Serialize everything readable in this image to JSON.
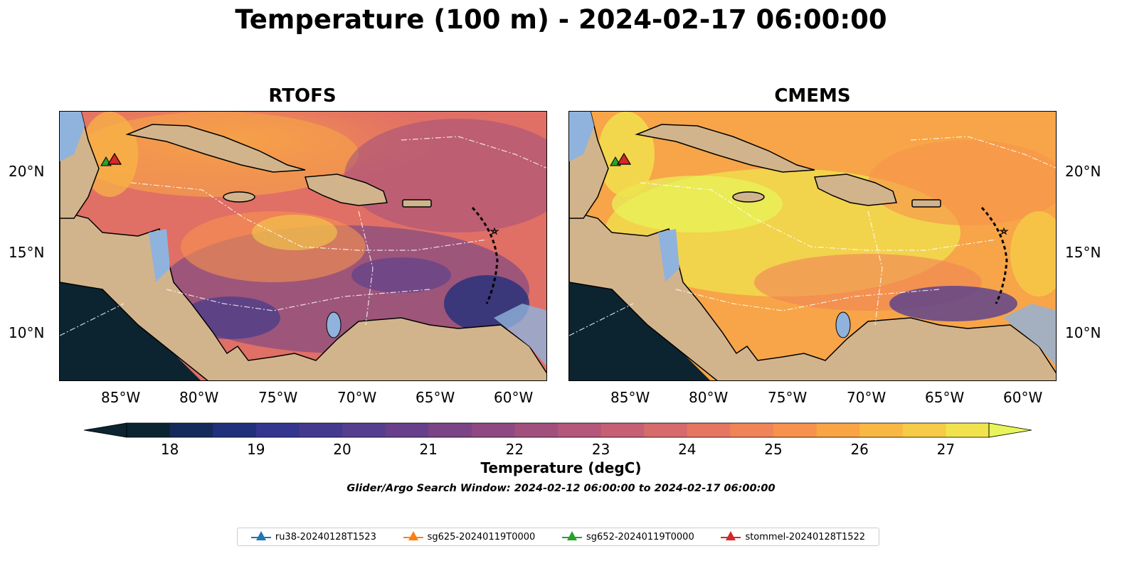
{
  "title": "Temperature (100 m) - 2024-02-17 06:00:00",
  "panels": [
    {
      "name": "RTOFS"
    },
    {
      "name": "CMEMS"
    }
  ],
  "x_ticks": [
    "85°W",
    "80°W",
    "75°W",
    "70°W",
    "65°W",
    "60°W"
  ],
  "y_ticks": [
    "20°N",
    "15°N",
    "10°N"
  ],
  "colorbar": {
    "label": "Temperature (degC)",
    "min": 17.5,
    "max": 27.5,
    "ticks": [
      "18",
      "19",
      "20",
      "21",
      "22",
      "23",
      "24",
      "25",
      "26",
      "27"
    ],
    "colors": [
      "#0b2430",
      "#142a5a",
      "#21307a",
      "#33358e",
      "#43398e",
      "#553e8e",
      "#683f8a",
      "#7b4486",
      "#8e4982",
      "#a1507e",
      "#b4577a",
      "#c65f73",
      "#d76a6b",
      "#e67562",
      "#f08458",
      "#f6924d",
      "#f9a445",
      "#f9b744",
      "#f5cb47",
      "#f0e34e"
    ],
    "over_color": "#e8f55a",
    "under_color": "#0b2430"
  },
  "search_window": "Glider/Argo Search Window: 2024-02-12 06:00:00 to 2024-02-17 06:00:00",
  "legend": [
    {
      "label": "ru38-20240128T1523",
      "color": "#1f77b4"
    },
    {
      "label": "sg625-20240119T0000",
      "color": "#ff7f0e"
    },
    {
      "label": "sg652-20240119T0000",
      "color": "#2ca02c"
    },
    {
      "label": "stommel-20240128T1522",
      "color": "#d62728"
    }
  ],
  "colors": {
    "land": "#d2b48c",
    "shelf": "#8fb3dd",
    "pacific": "#0b2430"
  }
}
